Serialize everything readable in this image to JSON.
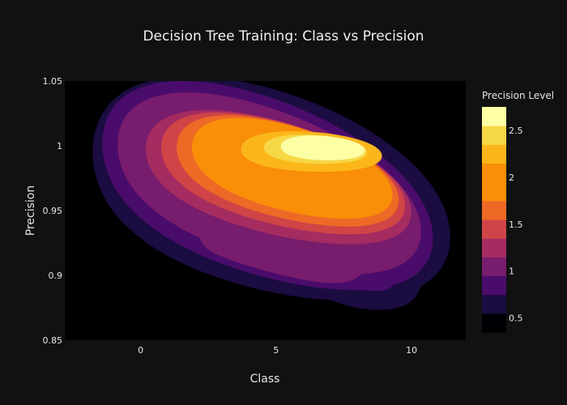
{
  "chart_data": {
    "type": "contour",
    "title": "Decision Tree Training: Class vs Precision",
    "xlabel": "Class",
    "ylabel": "Precision",
    "xlim": [
      -2.8,
      12
    ],
    "ylim": [
      0.85,
      1.05
    ],
    "x_ticks": [
      0,
      5,
      10
    ],
    "y_ticks": [
      0.85,
      0.9,
      0.95,
      1,
      1.05
    ],
    "y_tick_labels": [
      "0.85",
      "0.9",
      "0.95",
      "1",
      "1.05"
    ],
    "colorbar": {
      "title": "Precision Level",
      "range": [
        0.35,
        2.75
      ],
      "ticks": [
        0.5,
        1,
        1.5,
        2,
        2.5
      ],
      "levels": [
        {
          "min": 0.35,
          "max": 0.55,
          "color": "#000004"
        },
        {
          "min": 0.55,
          "max": 0.75,
          "color": "#1b0c41"
        },
        {
          "min": 0.75,
          "max": 0.95,
          "color": "#4a0c6b"
        },
        {
          "min": 0.95,
          "max": 1.15,
          "color": "#781c6d"
        },
        {
          "min": 1.15,
          "max": 1.35,
          "color": "#a52c60"
        },
        {
          "min": 1.35,
          "max": 1.55,
          "color": "#cf4446"
        },
        {
          "min": 1.55,
          "max": 1.75,
          "color": "#ed6925"
        },
        {
          "min": 1.75,
          "max": 1.95,
          "color": "#f98e09"
        },
        {
          "min": 1.95,
          "max": 2.15,
          "color": "#f98e09"
        },
        {
          "min": 2.15,
          "max": 2.35,
          "color": "#fbb61a"
        },
        {
          "min": 2.35,
          "max": 2.55,
          "color": "#f6d746"
        },
        {
          "min": 2.55,
          "max": 2.75,
          "color": "#fcffa4"
        }
      ]
    },
    "contours": [
      {
        "level": 0.55,
        "color": "#1b0c41",
        "center": [
          4.3,
          0.965
        ],
        "rx": 6.6,
        "ry": 0.092,
        "tilt": -0.005
      },
      {
        "level": 0.75,
        "color": "#4a0c6b",
        "center": [
          4.2,
          0.968
        ],
        "rx": 6.1,
        "ry": 0.082,
        "tilt": -0.006
      },
      {
        "level": 0.95,
        "color": "#781c6d",
        "center": [
          4.3,
          0.97
        ],
        "rx": 5.6,
        "ry": 0.07,
        "tilt": -0.006
      },
      {
        "level": 1.15,
        "color": "#a52c60",
        "center": [
          4.7,
          0.975
        ],
        "rx": 4.9,
        "ry": 0.052,
        "tilt": -0.005
      },
      {
        "level": 1.35,
        "color": "#cf4446",
        "center": [
          4.9,
          0.978
        ],
        "rx": 4.5,
        "ry": 0.047,
        "tilt": -0.005
      },
      {
        "level": 1.55,
        "color": "#ed6925",
        "center": [
          5.1,
          0.98
        ],
        "rx": 4.1,
        "ry": 0.043,
        "tilt": -0.005
      },
      {
        "level": 1.75,
        "color": "#f98e09",
        "center": [
          5.3,
          0.982
        ],
        "rx": 3.7,
        "ry": 0.039,
        "tilt": -0.005
      },
      {
        "level": 2.15,
        "color": "#fbb61a",
        "center": [
          6.1,
          0.995
        ],
        "rx": 2.6,
        "ry": 0.018,
        "tilt": -0.001
      },
      {
        "level": 2.35,
        "color": "#f6d746",
        "center": [
          6.3,
          0.997
        ],
        "rx": 1.9,
        "ry": 0.013,
        "tilt": -0.001
      },
      {
        "level": 2.55,
        "color": "#fcffa4",
        "center": [
          6.6,
          0.998
        ],
        "rx": 1.55,
        "ry": 0.011,
        "tilt": -0.001
      }
    ],
    "lobes": [
      {
        "color": "#1b0c41",
        "points": [
          [
            8.2,
            0.95
          ],
          [
            10.6,
            0.96
          ],
          [
            10.2,
            0.885
          ],
          [
            8.0,
            0.875
          ],
          [
            6.0,
            0.9
          ]
        ]
      },
      {
        "color": "#4a0c6b",
        "points": [
          [
            7.8,
            0.95
          ],
          [
            9.5,
            0.955
          ],
          [
            9.4,
            0.895
          ],
          [
            7.8,
            0.89
          ],
          [
            5.8,
            0.905
          ]
        ]
      },
      {
        "color": "#781c6d",
        "points": [
          [
            3.0,
            0.95
          ],
          [
            8.2,
            0.955
          ],
          [
            8.3,
            0.905
          ],
          [
            6.5,
            0.895
          ],
          [
            2.5,
            0.92
          ]
        ]
      }
    ],
    "grid": false,
    "legend": "colorbar-right"
  }
}
